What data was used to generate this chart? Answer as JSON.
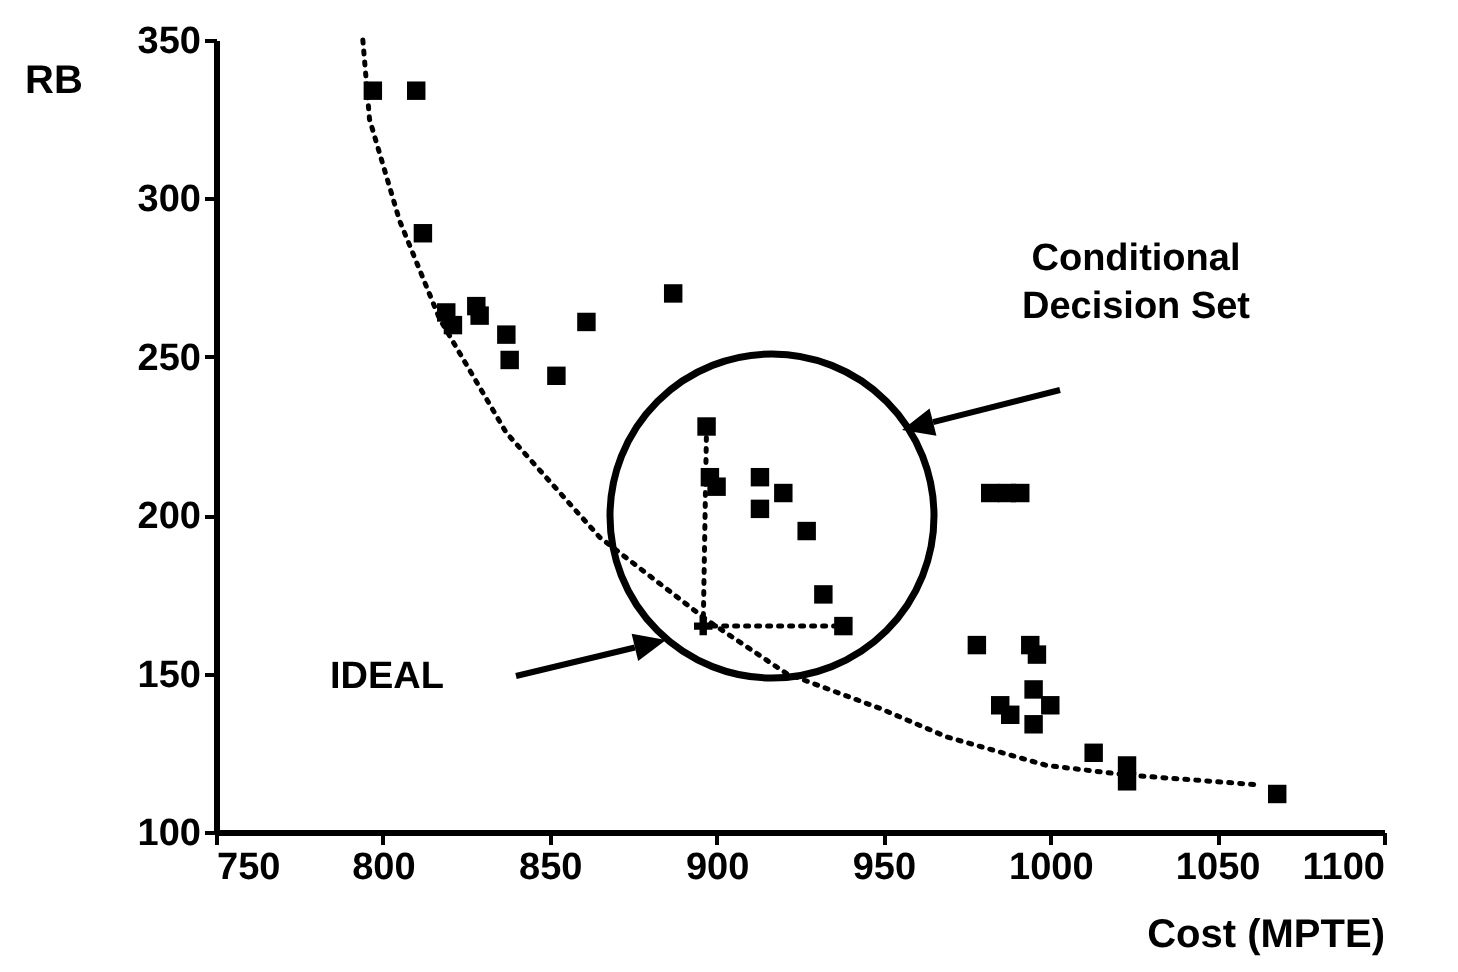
{
  "chart_data": {
    "type": "scatter",
    "xlabel": "Cost (MPTE)",
    "ylabel": "RB",
    "xlim": [
      750,
      1100
    ],
    "xticks": [
      750,
      800,
      850,
      900,
      950,
      1000,
      1050,
      1100
    ],
    "ylim": [
      100,
      350
    ],
    "yticks": [
      100,
      150,
      200,
      250,
      300,
      350
    ],
    "grid": false,
    "annotations": [
      "IDEAL",
      "Conditional Decision Set"
    ],
    "series": [
      {
        "marker": "square",
        "color": "#000000",
        "x": [
          797,
          810,
          812,
          819,
          821,
          828,
          829,
          837,
          838,
          852,
          861,
          887,
          897,
          898,
          900,
          913,
          920,
          913,
          927,
          932,
          938,
          982,
          987,
          991,
          978,
          994,
          996,
          995,
          985,
          988,
          995,
          1000,
          1013,
          1023,
          1023,
          1068
        ],
        "values": [
          334,
          334,
          289,
          264,
          260,
          266,
          263,
          257,
          249,
          244,
          261,
          270,
          228,
          212,
          209,
          212,
          207,
          202,
          195,
          175,
          165,
          207,
          207,
          207,
          159,
          159,
          156,
          145,
          140,
          137,
          134,
          140,
          125,
          121,
          116,
          112
        ]
      },
      {
        "type": "scatter",
        "marker": "cross",
        "color": "#000000",
        "x": [
          896
        ],
        "values": [
          165
        ]
      },
      {
        "type": "line",
        "line_style": "dotted",
        "color": "#000000",
        "x": [
          794,
          796,
          805,
          817,
          837,
          865,
          897,
          921,
          949,
          969,
          999,
          1023,
          1061
        ],
        "values": [
          350,
          325,
          293,
          262,
          226,
          193,
          167,
          150,
          139,
          130,
          121,
          118,
          115
        ]
      },
      {
        "type": "line",
        "line_style": "dotted",
        "color": "#000000",
        "x": [
          897,
          896,
          938
        ],
        "values": [
          228,
          165,
          165
        ]
      }
    ]
  }
}
